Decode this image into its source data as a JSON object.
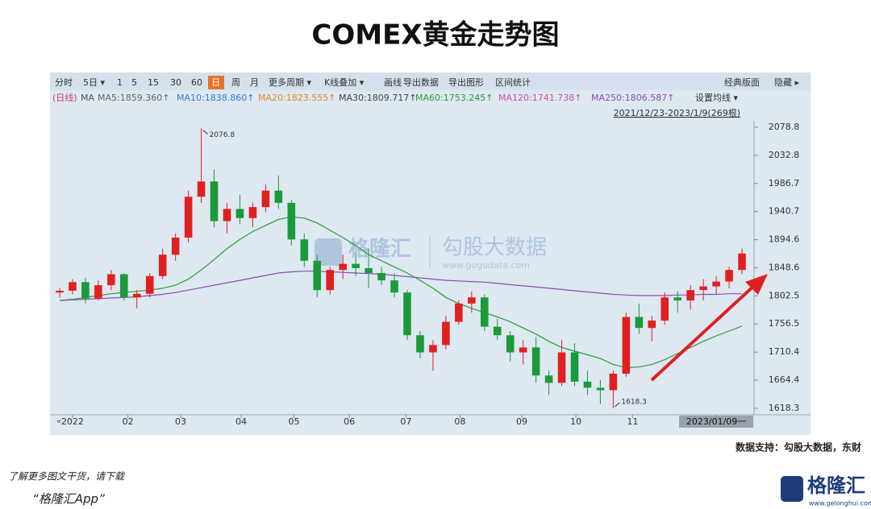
{
  "chart_data": {
    "type": "candlestick",
    "title": "COMEX黄金走势图",
    "toolbar": [
      "分时",
      "5日 ▾",
      "1",
      "5",
      "15",
      "30",
      "60",
      "日",
      "周",
      "月",
      "更多周期 ▾",
      "K线叠加 ▾",
      "画线",
      "导出数据",
      "导出图形",
      "区间统计"
    ],
    "toolbar_right": [
      "经典版面",
      "隐藏 ▸"
    ],
    "ma_legend": [
      {
        "text": "(日线)",
        "color": "#d04060"
      },
      {
        "text": "MA",
        "color": "#555555"
      },
      {
        "text": "MA5:1859.360↑",
        "color": "#666666"
      },
      {
        "text": "MA10:1838.860↑",
        "color": "#3a7bd5"
      },
      {
        "text": "MA20:1823.555↑",
        "color": "#e08a1e"
      },
      {
        "text": "MA30:1809.717↑",
        "color": "#444444"
      },
      {
        "text": "MA60:1753.245↑",
        "color": "#2f9a3a"
      },
      {
        "text": "MA120:1741.738↑",
        "color": "#d04fa0"
      },
      {
        "text": "MA250:1806.587↑",
        "color": "#8a4db0"
      }
    ],
    "ma_settings": "设置均线 ▾",
    "range_label": "2021/12/23-2023/1/9(269根)",
    "up_color": "#e02020",
    "down_color": "#1a9a3a",
    "open": [
      1808,
      1811,
      1825,
      1798,
      1820,
      1838,
      1800,
      1806,
      1835,
      1870,
      1898,
      1965,
      1990,
      1925,
      1945,
      1930,
      1948,
      1975,
      1955,
      1895,
      1860,
      1812,
      1845,
      1855,
      1848,
      1840,
      1828,
      1808,
      1738,
      1710,
      1722,
      1760,
      1790,
      1800,
      1752,
      1738,
      1710,
      1718,
      1672,
      1660,
      1710,
      1662,
      1652,
      1648,
      1675,
      1768,
      1750,
      1762,
      1800,
      1795,
      1812,
      1818,
      1826,
      1845
    ],
    "high": [
      1815,
      1830,
      1832,
      1828,
      1845,
      1840,
      1812,
      1840,
      1880,
      1905,
      1975,
      2076.8,
      2010,
      1955,
      1968,
      1955,
      1985,
      2000,
      1960,
      1905,
      1870,
      1850,
      1870,
      1875,
      1880,
      1850,
      1840,
      1812,
      1745,
      1730,
      1770,
      1795,
      1810,
      1805,
      1765,
      1745,
      1730,
      1735,
      1680,
      1730,
      1725,
      1680,
      1665,
      1680,
      1775,
      1790,
      1770,
      1808,
      1810,
      1820,
      1830,
      1835,
      1850,
      1880
    ],
    "low": [
      1800,
      1805,
      1790,
      1795,
      1812,
      1795,
      1782,
      1800,
      1830,
      1860,
      1890,
      1955,
      1915,
      1905,
      1920,
      1915,
      1940,
      1945,
      1885,
      1850,
      1800,
      1805,
      1830,
      1835,
      1815,
      1820,
      1800,
      1730,
      1700,
      1680,
      1715,
      1755,
      1775,
      1745,
      1730,
      1695,
      1690,
      1660,
      1640,
      1655,
      1655,
      1640,
      1625,
      1618.3,
      1670,
      1740,
      1728,
      1755,
      1775,
      1780,
      1795,
      1805,
      1815,
      1838
    ],
    "close": [
      1811,
      1825,
      1798,
      1820,
      1838,
      1800,
      1806,
      1835,
      1870,
      1898,
      1965,
      1990,
      1925,
      1945,
      1930,
      1948,
      1975,
      1955,
      1895,
      1860,
      1812,
      1845,
      1855,
      1848,
      1840,
      1828,
      1808,
      1738,
      1710,
      1722,
      1760,
      1790,
      1800,
      1752,
      1738,
      1710,
      1718,
      1672,
      1660,
      1710,
      1662,
      1652,
      1648,
      1675,
      1768,
      1750,
      1762,
      1800,
      1795,
      1812,
      1818,
      1826,
      1845,
      1872
    ],
    "series": [
      {
        "name": "MA60",
        "color": "#2f9a3a",
        "values": [
          1795,
          1797,
          1800,
          1803,
          1806,
          1808,
          1810,
          1812,
          1815,
          1820,
          1830,
          1845,
          1862,
          1880,
          1895,
          1908,
          1918,
          1928,
          1932,
          1930,
          1922,
          1910,
          1898,
          1885,
          1870,
          1860,
          1850,
          1840,
          1828,
          1815,
          1800,
          1790,
          1782,
          1775,
          1768,
          1760,
          1750,
          1740,
          1728,
          1718,
          1712,
          1706,
          1700,
          1690,
          1685,
          1686,
          1690,
          1698,
          1708,
          1718,
          1728,
          1737,
          1745,
          1753
        ]
      },
      {
        "name": "MA250",
        "color": "#8a4db0",
        "values": [
          1795,
          1796,
          1797,
          1798,
          1799,
          1800,
          1801,
          1803,
          1805,
          1808,
          1812,
          1816,
          1820,
          1824,
          1828,
          1832,
          1836,
          1840,
          1842,
          1843,
          1843,
          1842,
          1841,
          1840,
          1839,
          1838,
          1836,
          1834,
          1832,
          1830,
          1828,
          1827,
          1826,
          1825,
          1823,
          1821,
          1819,
          1817,
          1815,
          1813,
          1811,
          1809,
          1807,
          1805,
          1804,
          1803,
          1803,
          1803,
          1804,
          1804,
          1805,
          1805,
          1806,
          1806
        ]
      }
    ],
    "ylim": [
      1607.7,
      2089.4
    ],
    "yticks": [
      2078.8,
      2032.8,
      1986.7,
      1940.7,
      1894.6,
      1848.6,
      1802.5,
      1756.5,
      1710.4,
      1664.4,
      1618.3
    ],
    "xticks": [
      {
        "value": 1.5,
        "label": "2022"
      },
      {
        "value": 5.8,
        "label": "02"
      },
      {
        "value": 9.9,
        "label": "03"
      },
      {
        "value": 14.6,
        "label": "04"
      },
      {
        "value": 18.7,
        "label": "05"
      },
      {
        "value": 23,
        "label": "06"
      },
      {
        "value": 27.4,
        "label": "07"
      },
      {
        "value": 31.6,
        "label": "08"
      },
      {
        "value": 36.4,
        "label": "09"
      },
      {
        "value": 40.6,
        "label": "10"
      },
      {
        "value": 45,
        "label": "11"
      },
      {
        "value": 51.5,
        "label": "2023/01/09一"
      }
    ]
  },
  "watermark": {
    "brand": "格隆汇",
    "name": "勾股大数据",
    "url": "www.gogudata.com"
  },
  "source": "数据支持：勾股大数据，东财",
  "footer": {
    "line1": "了解更多图文干货，请下载",
    "line2": "“格隆汇App”",
    "logo": "格隆汇",
    "logo_url": "www.gelonghui.com"
  }
}
